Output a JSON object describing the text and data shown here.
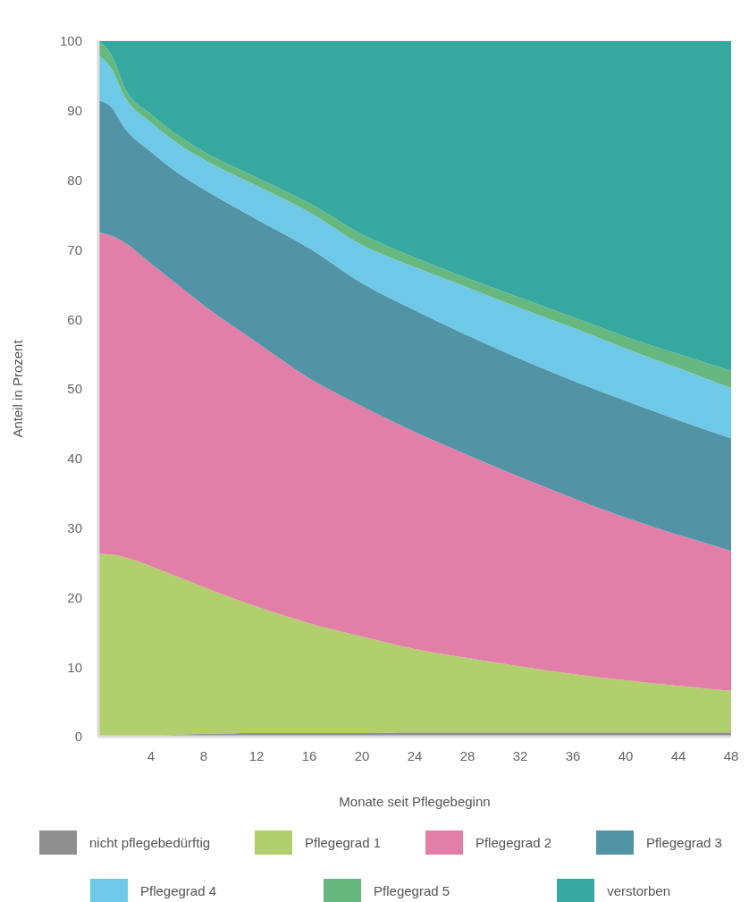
{
  "chart_data": {
    "type": "area",
    "stacked": true,
    "xlabel": "Monate seit Pflegebeginn",
    "ylabel": "Anteil in Prozent",
    "x": [
      0,
      1,
      2,
      4,
      6,
      8,
      12,
      16,
      20,
      24,
      28,
      32,
      36,
      40,
      44,
      48
    ],
    "xlim": [
      0,
      48
    ],
    "xticks": [
      4,
      8,
      12,
      16,
      20,
      24,
      28,
      32,
      36,
      40,
      44,
      48
    ],
    "ylim": [
      0,
      100
    ],
    "yticks": [
      0,
      10,
      20,
      30,
      40,
      50,
      60,
      70,
      80,
      90,
      100
    ],
    "grid": "y",
    "legend": "bottom",
    "series": [
      {
        "name": "nicht pflegebedürftig",
        "color": "#8f8f8f",
        "values": [
          0,
          0,
          0,
          0.1,
          0.3,
          0.4,
          0.5,
          0.5,
          0.5,
          0.6,
          0.6,
          0.6,
          0.6,
          0.6,
          0.6,
          0.6
        ]
      },
      {
        "name": "Pflegegrad 1",
        "color": "#b2cf6e",
        "values": [
          26.3,
          26.2,
          25.8,
          24.4,
          22.7,
          21.1,
          18.2,
          15.8,
          13.9,
          12,
          10.7,
          9.5,
          8.4,
          7.5,
          6.7,
          6
        ]
      },
      {
        "name": "Pflegegrad 2",
        "color": "#e27fa8",
        "values": [
          46.2,
          45.8,
          45.2,
          43.5,
          42,
          40.5,
          38,
          35.2,
          33.1,
          31.2,
          29.2,
          27.2,
          25.3,
          23.4,
          21.7,
          20.1
        ]
      },
      {
        "name": "Pflegegrad 3",
        "color": "#5393a6",
        "values": [
          19,
          18.5,
          16.5,
          16.1,
          16.1,
          16.7,
          17.7,
          18.7,
          17.7,
          17.5,
          17.2,
          17,
          16.9,
          16.8,
          16.5,
          16.2
        ]
      },
      {
        "name": "Pflegegrad 4",
        "color": "#6ec8e8",
        "values": [
          6.5,
          5.5,
          4.5,
          4.2,
          4.2,
          4.3,
          4.8,
          5.2,
          5.5,
          6.2,
          6.9,
          7.3,
          7.6,
          7.5,
          7.5,
          7.2
        ]
      },
      {
        "name": "Pflegegrad 5",
        "color": "#66b87e",
        "values": [
          2,
          2,
          1.3,
          1.2,
          1.2,
          1.1,
          1.2,
          1.3,
          1.5,
          1.4,
          1.3,
          1.5,
          1.5,
          1.7,
          2,
          2.5
        ]
      },
      {
        "name": "verstorben",
        "color": "#36a8a0",
        "values": [
          0,
          2,
          6.7,
          10.5,
          13.5,
          15.9,
          19.6,
          23.3,
          27.8,
          31.1,
          34.1,
          36.9,
          39.7,
          42.5,
          45,
          47.4
        ]
      }
    ]
  }
}
